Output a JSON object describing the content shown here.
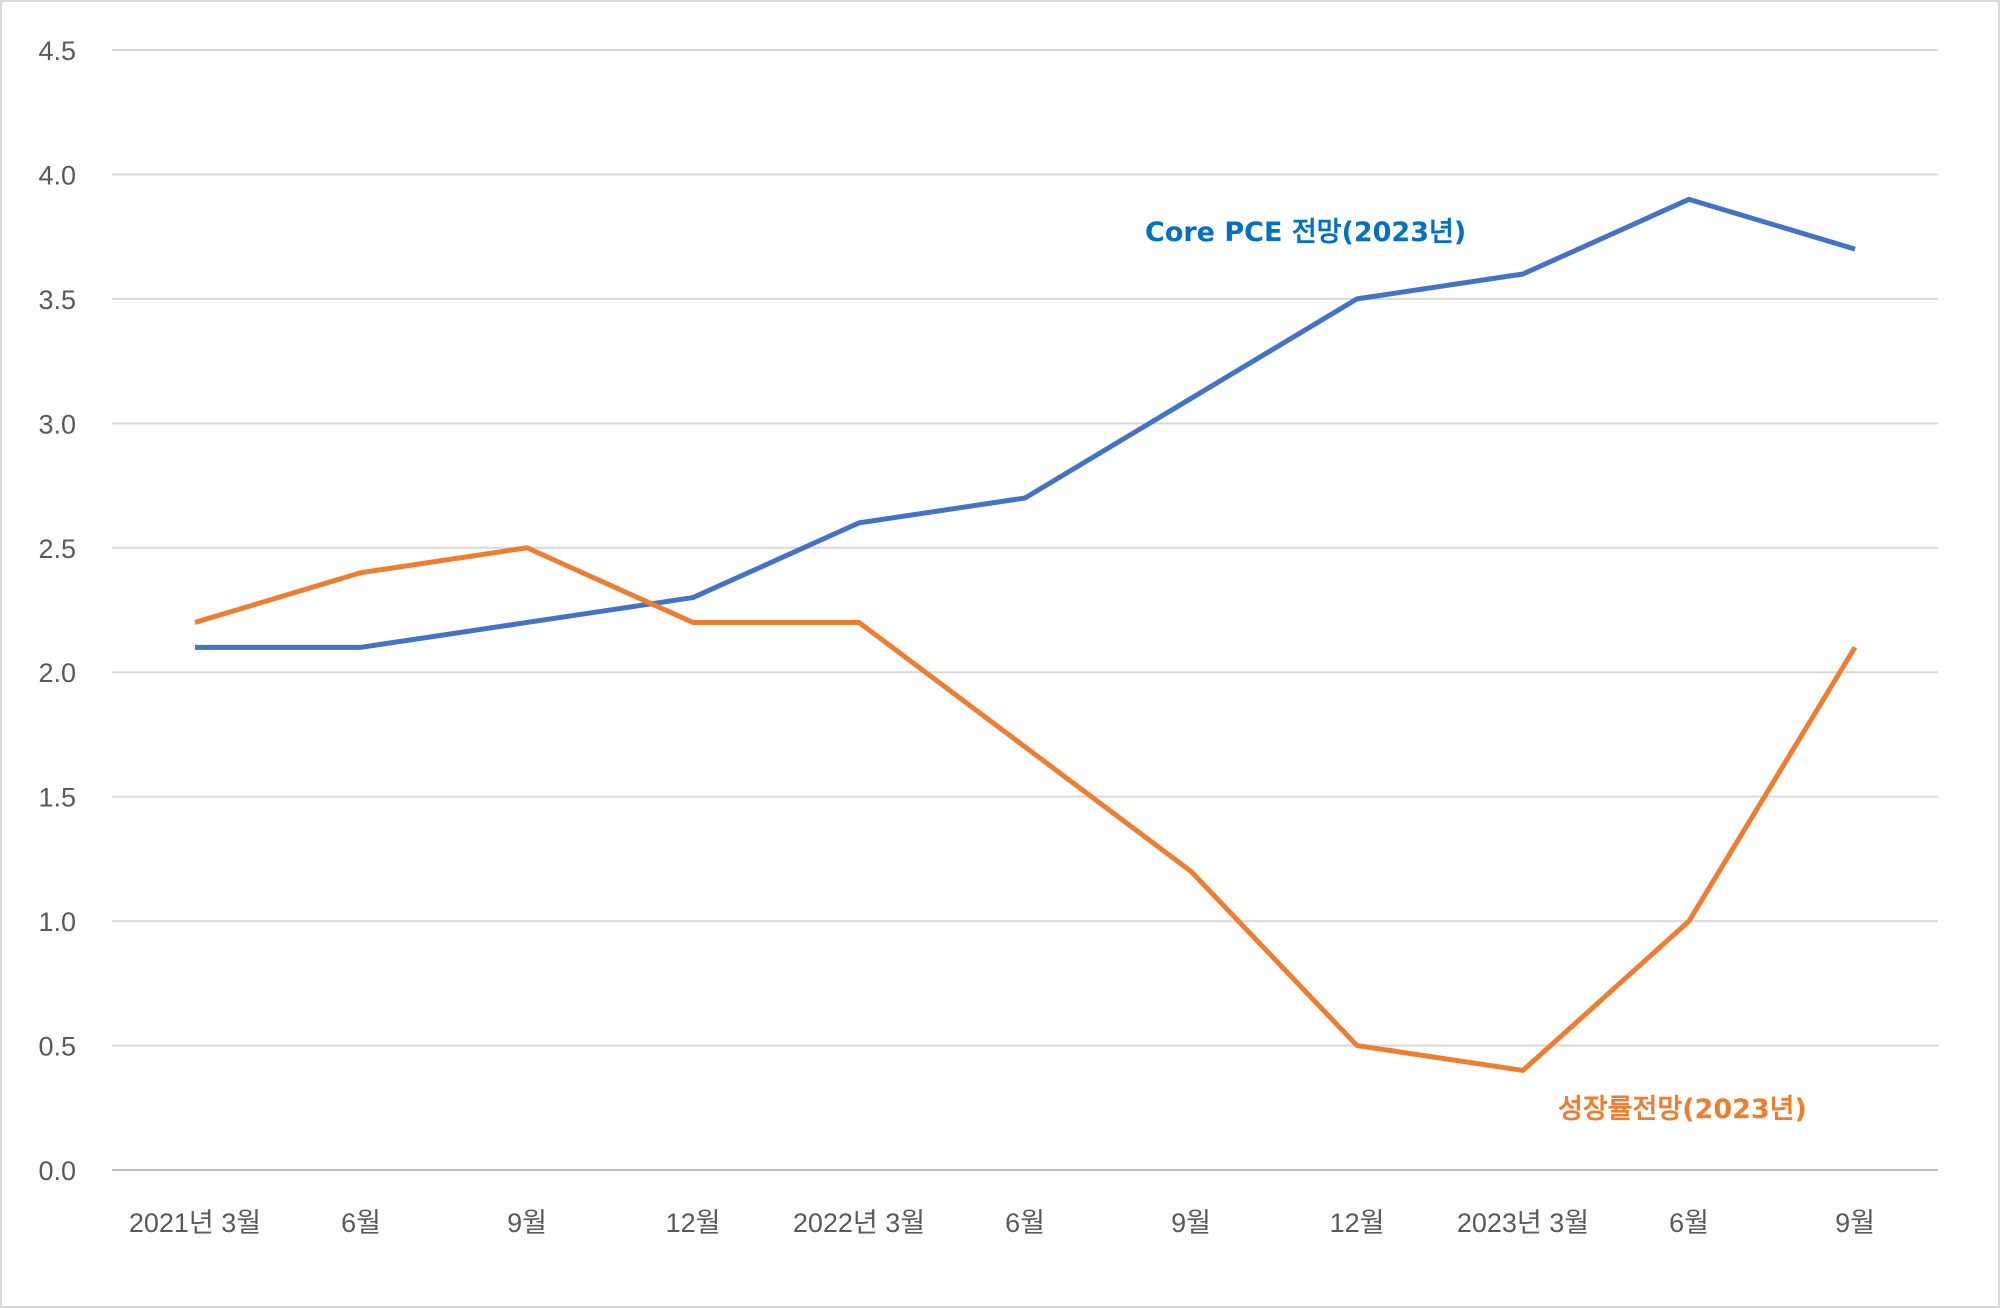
{
  "chart_data": {
    "type": "line",
    "categories": [
      "2021년 3월",
      "6월",
      "9월",
      "12월",
      "2022년 3월",
      "6월",
      "9월",
      "12월",
      "2023년 3월",
      "6월",
      "9월"
    ],
    "series": [
      {
        "name": "Core PCE 전망(2023년)",
        "color": "#4472C4",
        "values": [
          2.1,
          2.1,
          2.2,
          2.3,
          2.6,
          2.7,
          3.1,
          3.5,
          3.6,
          3.9,
          3.7
        ]
      },
      {
        "name": "성장률전망(2023년)",
        "color": "#ED7D31",
        "values": [
          2.2,
          2.4,
          2.5,
          2.2,
          2.2,
          1.7,
          1.2,
          0.5,
          0.4,
          1.0,
          2.1
        ]
      }
    ],
    "ylim": [
      0,
      4.5
    ],
    "yticks": [
      "0.0",
      "0.5",
      "1.0",
      "1.5",
      "2.0",
      "2.5",
      "3.0",
      "3.5",
      "4.0",
      "4.5"
    ],
    "grid": true,
    "title": "",
    "xlabel": "",
    "ylabel": ""
  }
}
